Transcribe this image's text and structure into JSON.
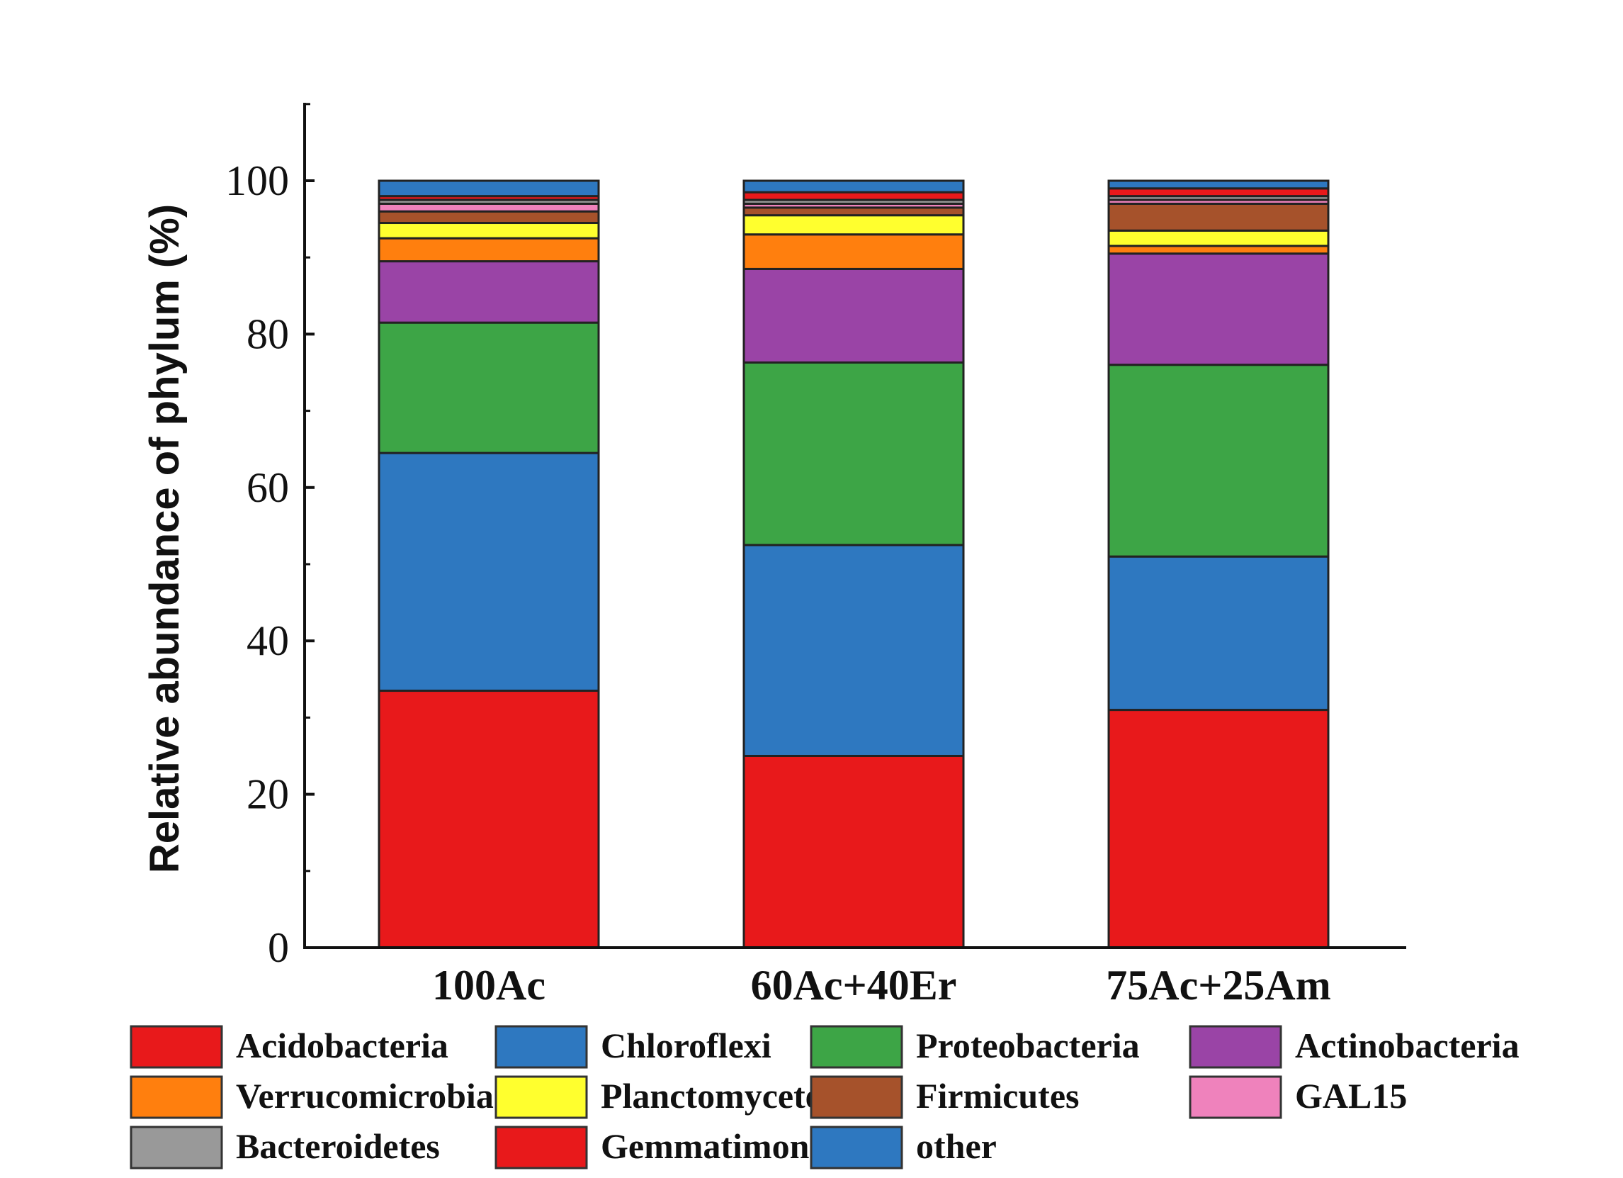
{
  "chart_data": {
    "type": "bar",
    "stacked": true,
    "categories": [
      "100Ac",
      "60Ac+40Er",
      "75Ac+25Am"
    ],
    "ylabel": "Relative abundance of phylum (%)",
    "xlabel": "",
    "ylim": [
      0,
      110
    ],
    "yticks": [
      "0",
      "20",
      "40",
      "60",
      "80",
      "100"
    ],
    "grid": false,
    "legend_position": "bottom",
    "series": [
      {
        "name": "Acidobacteria",
        "color": "#e8191b",
        "values": [
          33.5,
          25.0,
          31.0
        ]
      },
      {
        "name": "Chloroflexi",
        "color": "#2e78c0",
        "values": [
          31.0,
          27.5,
          20.0
        ]
      },
      {
        "name": "Proteobacteria",
        "color": "#3da546",
        "values": [
          17.0,
          23.8,
          25.0
        ]
      },
      {
        "name": "Actinobacteria",
        "color": "#9a44a6",
        "values": [
          8.0,
          12.2,
          14.5
        ]
      },
      {
        "name": "Verrucomicrobia",
        "color": "#ff7f0e",
        "values": [
          3.0,
          4.5,
          1.0
        ]
      },
      {
        "name": "Planctomycetes",
        "color": "#ffff2e",
        "values": [
          2.0,
          2.5,
          2.0
        ]
      },
      {
        "name": "Firmicutes",
        "color": "#a6522b",
        "values": [
          1.5,
          1.0,
          3.5
        ]
      },
      {
        "name": "GAL15",
        "color": "#ef82bc",
        "values": [
          1.0,
          0.5,
          0.5
        ]
      },
      {
        "name": "Bacteroidetes",
        "color": "#999999",
        "values": [
          0.5,
          0.5,
          0.5
        ]
      },
      {
        "name": "Gemmatimonadetes",
        "color": "#e8191b",
        "values": [
          0.5,
          1.0,
          1.0
        ]
      },
      {
        "name": "other",
        "color": "#2e78c0",
        "values": [
          2.0,
          1.5,
          1.0
        ]
      }
    ]
  }
}
